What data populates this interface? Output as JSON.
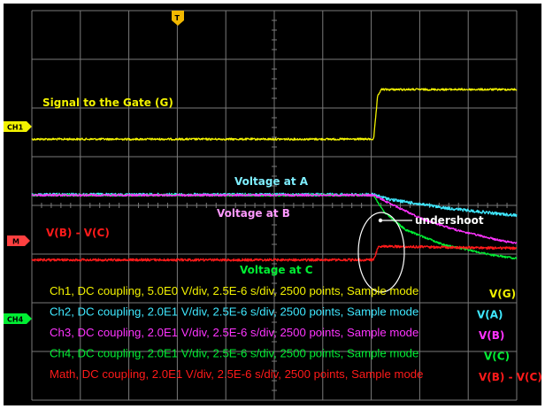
{
  "chart_data": {
    "type": "line",
    "title": "",
    "xlabel": "",
    "ylabel": "",
    "grid": true,
    "x_divisions": 10,
    "y_divisions": 8,
    "time_per_div_us": 2.5,
    "x_range_us": [
      0,
      25
    ],
    "series": [
      {
        "id": "gate",
        "channel": "CH1",
        "color": "#f2f200",
        "label": "Signal to the Gate (G)",
        "y_div": [
          [
            0,
            2.64
          ],
          [
            7.05,
            2.64
          ],
          [
            7.13,
            1.77
          ],
          [
            7.2,
            1.62
          ],
          [
            14.25,
            1.62
          ],
          [
            14.33,
            2.5
          ],
          [
            14.43,
            2.38
          ],
          [
            14.6,
            2.64
          ],
          [
            15.1,
            2.52
          ],
          [
            15.4,
            2.64
          ],
          [
            25,
            2.64
          ]
        ],
        "noise": 0.02
      },
      {
        "id": "vA",
        "channel": "CH2",
        "color": "#3fe8ff",
        "label": "Voltage at A",
        "y_div": [
          [
            0,
            3.78
          ],
          [
            7.05,
            3.78
          ],
          [
            7.4,
            3.88
          ],
          [
            8.5,
            4.05
          ],
          [
            9.7,
            4.18
          ],
          [
            10.8,
            4.27
          ],
          [
            12,
            4.34
          ],
          [
            13.2,
            4.38
          ],
          [
            14.3,
            4.42
          ],
          [
            14.45,
            4.35
          ],
          [
            14.6,
            4.15
          ],
          [
            14.8,
            3.9
          ],
          [
            15.0,
            3.84
          ],
          [
            15.4,
            3.78
          ],
          [
            16,
            3.78
          ],
          [
            25,
            3.78
          ]
        ],
        "noise": 0.03
      },
      {
        "id": "vB",
        "channel": "CH3",
        "color": "#ff33ff",
        "label": "Voltage at B",
        "y_div": [
          [
            0,
            3.79
          ],
          [
            7.05,
            3.79
          ],
          [
            7.4,
            3.97
          ],
          [
            8.1,
            4.3
          ],
          [
            8.8,
            4.52
          ],
          [
            9.7,
            4.73
          ],
          [
            10.8,
            4.91
          ],
          [
            12,
            5.08
          ],
          [
            13.2,
            5.21
          ],
          [
            14.4,
            5.3
          ],
          [
            14.5,
            5.1
          ],
          [
            14.65,
            4.7
          ],
          [
            14.8,
            4.35
          ],
          [
            15.0,
            3.95
          ],
          [
            15.3,
            3.79
          ],
          [
            25,
            3.79
          ]
        ],
        "noise": 0.02
      },
      {
        "id": "vC",
        "channel": "CH4",
        "color": "#00ee33",
        "label": "Voltage at C",
        "y_div": [
          [
            0,
            3.79
          ],
          [
            7.05,
            3.79
          ],
          [
            7.25,
            4.12
          ],
          [
            7.7,
            4.5
          ],
          [
            8.5,
            4.81
          ],
          [
            9.5,
            5.02
          ],
          [
            10.8,
            5.2
          ],
          [
            12,
            5.34
          ],
          [
            13.2,
            5.42
          ],
          [
            14.4,
            5.48
          ],
          [
            14.5,
            5.1
          ],
          [
            14.65,
            4.4
          ],
          [
            14.8,
            3.7
          ],
          [
            14.92,
            3.2
          ],
          [
            15.05,
            3.05
          ],
          [
            15.2,
            3.4
          ],
          [
            15.4,
            3.65
          ],
          [
            15.8,
            3.75
          ],
          [
            25,
            3.79
          ]
        ],
        "noise": 0.02
      },
      {
        "id": "math",
        "channel": "Math",
        "color": "#ff1a1a",
        "label": "V(B) - V(C)",
        "y_div": [
          [
            0,
            5.12
          ],
          [
            7.05,
            5.12
          ],
          [
            7.15,
            4.84
          ],
          [
            8.5,
            4.86
          ],
          [
            10,
            4.88
          ],
          [
            11.5,
            4.9
          ],
          [
            13,
            4.91
          ],
          [
            14.2,
            4.94
          ],
          [
            14.35,
            5.3
          ],
          [
            14.45,
            5.9
          ],
          [
            14.55,
            5.5
          ],
          [
            14.7,
            4.95
          ],
          [
            14.9,
            4.3
          ],
          [
            15.05,
            4.75
          ],
          [
            15.3,
            5.0
          ],
          [
            15.8,
            5.1
          ],
          [
            16.5,
            5.12
          ],
          [
            25,
            5.12
          ]
        ],
        "noise": 0.025,
        "burst": [
          14.35,
          16.2,
          0.35
        ]
      }
    ],
    "annotations": {
      "gate": "Signal to the Gate (G)",
      "vA": "Voltage at A",
      "vB": "Voltage at B",
      "vC": "Voltage at C",
      "math": "V(B) - V(C)",
      "undershoot": "undershoot"
    },
    "channel_markers": {
      "ch1": "CH1",
      "m": "M",
      "ch4": "CH4",
      "trigger": "T"
    },
    "info_lines": [
      {
        "text": "Ch1, DC coupling, 5.0E0 V/div, 2.5E-6 s/div, 2500 points, Sample mode",
        "tag": "V(G)",
        "color": "#f2f200"
      },
      {
        "text": "Ch2, DC coupling, 2.0E1 V/div, 2.5E-6 s/div, 2500 points, Sample mode",
        "tag": "V(A)",
        "color": "#3fe8ff"
      },
      {
        "text": "Ch3, DC coupling, 2.0E1 V/div, 2.5E-6 s/div, 2500 points, Sample mode",
        "tag": "V(B)",
        "color": "#ff33ff"
      },
      {
        "text": "Ch4, DC coupling, 2.0E1 V/div, 2.5E-6 s/div, 2500 points, Sample mode",
        "tag": "V(C)",
        "color": "#00ee33"
      },
      {
        "text": "Math, DC coupling, 2.0E1 V/div, 2.5E-6 s/div, 2500 points, Sample mode",
        "tag": "V(B) - V(C)",
        "color": "#ff1a1a"
      }
    ]
  }
}
